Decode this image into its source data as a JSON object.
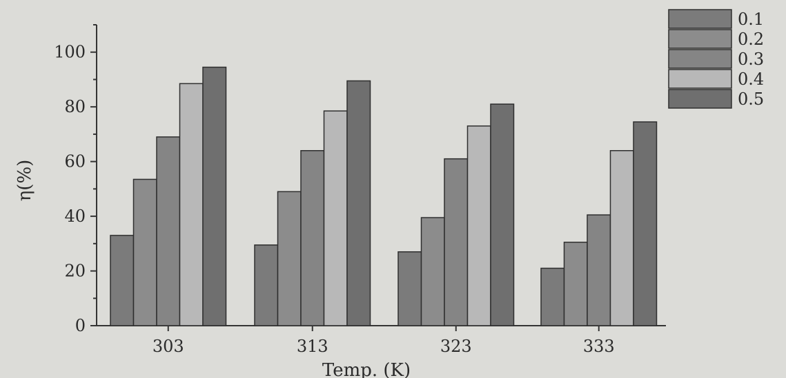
{
  "chart_data": {
    "type": "bar",
    "title": "",
    "xlabel": "Temp. (K)",
    "ylabel": "η(%)",
    "categories": [
      "303",
      "313",
      "323",
      "333"
    ],
    "ylim": [
      0,
      110
    ],
    "yticks": [
      "0",
      "20",
      "40",
      "60",
      "80",
      "100"
    ],
    "legend_position": "top-right",
    "grid": false,
    "series": [
      {
        "name": "0.1",
        "color": "#7b7b7b",
        "values": [
          33,
          29.5,
          27,
          21
        ]
      },
      {
        "name": "0.2",
        "color": "#8c8c8c",
        "values": [
          53.5,
          49,
          39.5,
          30.5
        ]
      },
      {
        "name": "0.3",
        "color": "#858585",
        "values": [
          69,
          64,
          61,
          40.5
        ]
      },
      {
        "name": "0.4",
        "color": "#b8b8b8",
        "values": [
          88.5,
          78.5,
          73,
          64
        ]
      },
      {
        "name": "0.5",
        "color": "#6f6f6f",
        "values": [
          94.5,
          89.5,
          81,
          74.5
        ]
      }
    ]
  }
}
